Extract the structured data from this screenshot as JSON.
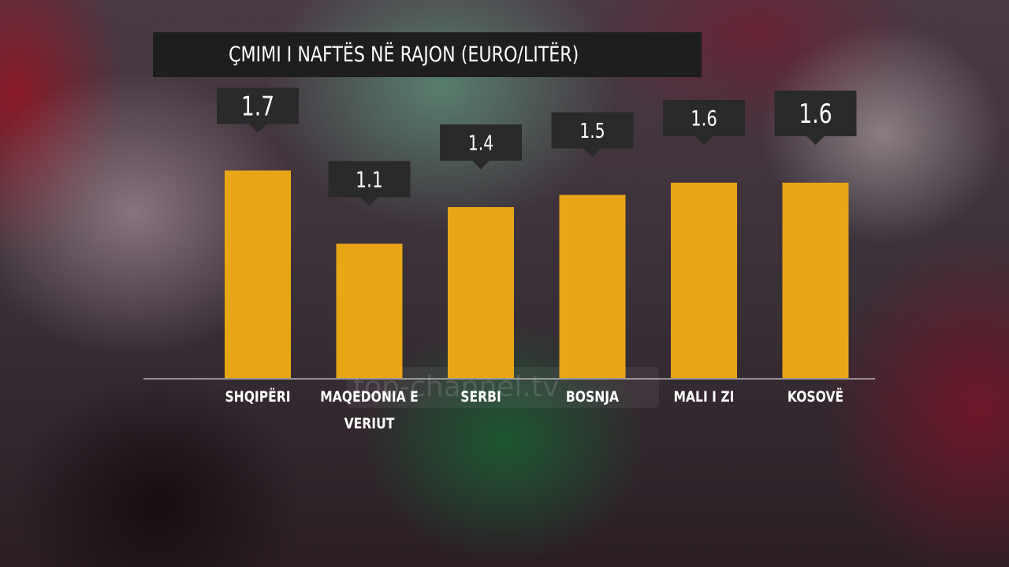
{
  "chart_data": {
    "type": "bar",
    "title": "ÇMIMI I NAFTËS NË RAJON (EURO/LITËR)",
    "categories": [
      [
        "SHQIPËRI"
      ],
      [
        "MAQEDONIA E",
        "VERIUT"
      ],
      [
        "SERBI"
      ],
      [
        "BOSNJA"
      ],
      [
        "MALI I ZI"
      ],
      [
        "KOSOVË"
      ]
    ],
    "values": [
      1.7,
      1.1,
      1.4,
      1.5,
      1.6,
      1.6
    ],
    "value_labels": [
      "1.7",
      "1.1",
      "1.4",
      "1.5",
      "1.6",
      "1.6"
    ],
    "bar_color": "#e8a617",
    "label_box_color": "#2a2a2a",
    "grid": false,
    "legend": "none"
  },
  "watermark": "top-channel.tv"
}
